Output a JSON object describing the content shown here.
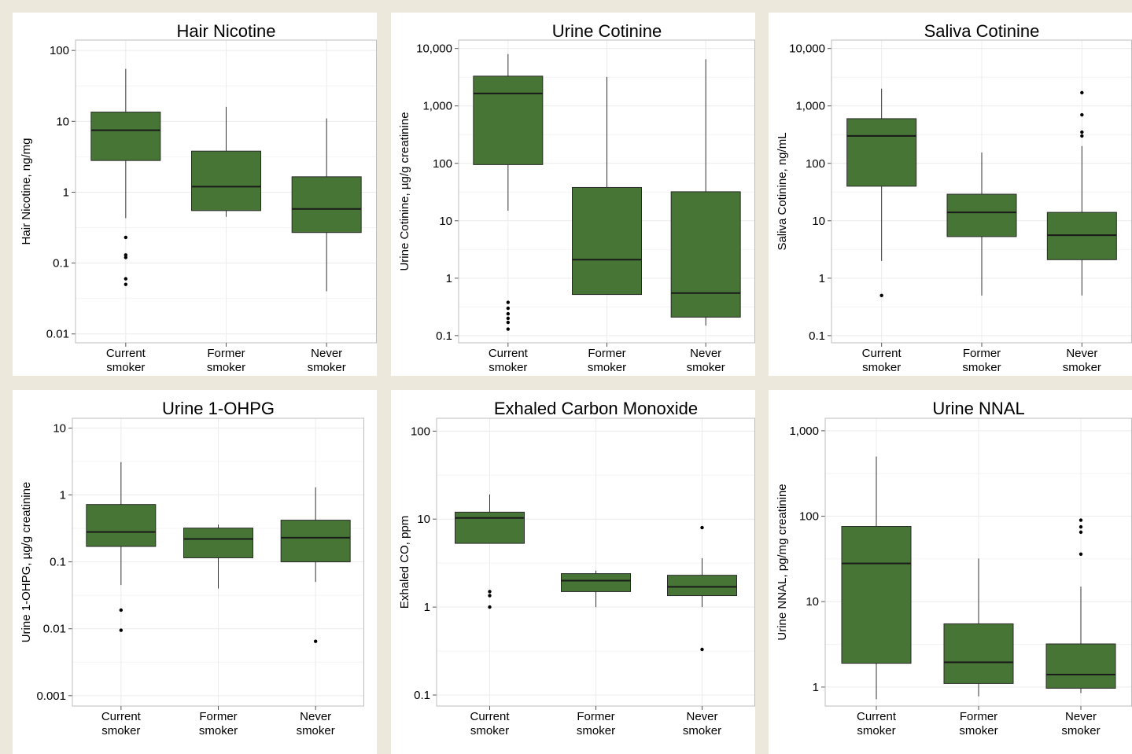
{
  "colors": {
    "box_fill": "#467535",
    "box_stroke": "#2a2a2a",
    "whisker": "#333333",
    "median": "#1a1a1a",
    "outlier": "#000000",
    "grid": "#ececec",
    "frame": "#bdbdbd",
    "background": "#ece9dc"
  },
  "chart_data": [
    {
      "type": "box",
      "title": "Hair Nicotine",
      "ylabel": "Hair Nicotine, ng/mg",
      "yscale": "log10",
      "ylim": [
        0.0075,
        140
      ],
      "yticks": [
        {
          "v": 0.01,
          "label": "0.01"
        },
        {
          "v": 0.1,
          "label": "0.1"
        },
        {
          "v": 1,
          "label": "1"
        },
        {
          "v": 10,
          "label": "10"
        },
        {
          "v": 100,
          "label": "100"
        }
      ],
      "categories": [
        [
          "Current",
          "smoker"
        ],
        [
          "Former",
          "smoker"
        ],
        [
          "Never",
          "smoker"
        ]
      ],
      "boxes": [
        {
          "low": 0.43,
          "q1": 2.8,
          "median": 7.5,
          "q3": 13.5,
          "high": 55,
          "outliers": [
            0.23,
            0.13,
            0.12,
            0.06,
            0.05
          ]
        },
        {
          "low": 0.45,
          "q1": 0.55,
          "median": 1.2,
          "q3": 3.8,
          "high": 16,
          "outliers": []
        },
        {
          "low": 0.04,
          "q1": 0.27,
          "median": 0.58,
          "q3": 1.65,
          "high": 11,
          "outliers": []
        }
      ]
    },
    {
      "type": "box",
      "title": "Urine Cotinine",
      "ylabel": "Urine Cotinine, µg/g creatinine",
      "yscale": "log10",
      "ylim": [
        0.075,
        14000
      ],
      "yticks": [
        {
          "v": 0.1,
          "label": "0.1"
        },
        {
          "v": 1,
          "label": "1"
        },
        {
          "v": 10,
          "label": "10"
        },
        {
          "v": 100,
          "label": "100"
        },
        {
          "v": 1000,
          "label": "1,000"
        },
        {
          "v": 10000,
          "label": "10,000"
        }
      ],
      "categories": [
        [
          "Current",
          "smoker"
        ],
        [
          "Former",
          "smoker"
        ],
        [
          "Never",
          "smoker"
        ]
      ],
      "boxes": [
        {
          "low": 15,
          "q1": 95,
          "median": 1650,
          "q3": 3300,
          "high": 8000,
          "outliers": [
            0.38,
            0.3,
            0.24,
            0.2,
            0.17,
            0.13
          ]
        },
        {
          "low": 0.52,
          "q1": 0.52,
          "median": 2.1,
          "q3": 38,
          "high": 3200,
          "outliers": []
        },
        {
          "low": 0.15,
          "q1": 0.21,
          "median": 0.55,
          "q3": 32,
          "high": 6500,
          "outliers": []
        }
      ]
    },
    {
      "type": "box",
      "title": "Saliva Cotinine",
      "ylabel": "Saliva Cotinine, ng/mL",
      "yscale": "log10",
      "ylim": [
        0.075,
        14000
      ],
      "yticks": [
        {
          "v": 0.1,
          "label": "0.1"
        },
        {
          "v": 1,
          "label": "1"
        },
        {
          "v": 10,
          "label": "10"
        },
        {
          "v": 100,
          "label": "100"
        },
        {
          "v": 1000,
          "label": "1,000"
        },
        {
          "v": 10000,
          "label": "10,000"
        }
      ],
      "categories": [
        [
          "Current",
          "smoker"
        ],
        [
          "Former",
          "smoker"
        ],
        [
          "Never",
          "smoker"
        ]
      ],
      "boxes": [
        {
          "low": 2,
          "q1": 40,
          "median": 300,
          "q3": 600,
          "high": 2000,
          "outliers": [
            0.5
          ]
        },
        {
          "low": 0.5,
          "q1": 5.3,
          "median": 14,
          "q3": 29,
          "high": 155,
          "outliers": []
        },
        {
          "low": 0.5,
          "q1": 2.1,
          "median": 5.6,
          "q3": 14,
          "high": 200,
          "outliers": [
            1700,
            700,
            350,
            300
          ]
        }
      ]
    },
    {
      "type": "box",
      "title": "Urine 1-OHPG",
      "ylabel": "Urine 1-OHPG, µg/g creatinine",
      "yscale": "log10",
      "ylim": [
        0.0007,
        14
      ],
      "yticks": [
        {
          "v": 0.001,
          "label": "0.001"
        },
        {
          "v": 0.01,
          "label": "0.01"
        },
        {
          "v": 0.1,
          "label": "0.1"
        },
        {
          "v": 1,
          "label": "1"
        },
        {
          "v": 10,
          "label": "10"
        }
      ],
      "categories": [
        [
          "Current",
          "smoker"
        ],
        [
          "Former",
          "smoker"
        ],
        [
          "Never",
          "smoker"
        ]
      ],
      "boxes": [
        {
          "low": 0.045,
          "q1": 0.17,
          "median": 0.28,
          "q3": 0.72,
          "high": 3.1,
          "outliers": [
            0.019,
            0.0095
          ]
        },
        {
          "low": 0.04,
          "q1": 0.115,
          "median": 0.22,
          "q3": 0.32,
          "high": 0.36,
          "outliers": []
        },
        {
          "low": 0.05,
          "q1": 0.1,
          "median": 0.23,
          "q3": 0.42,
          "high": 1.3,
          "outliers": [
            0.0065
          ]
        }
      ]
    },
    {
      "type": "box",
      "title": "Exhaled Carbon Monoxide",
      "ylabel": "Exhaled CO, ppm",
      "yscale": "log10",
      "ylim": [
        0.075,
        140
      ],
      "yticks": [
        {
          "v": 0.1,
          "label": "0.1"
        },
        {
          "v": 1,
          "label": "1"
        },
        {
          "v": 10,
          "label": "10"
        },
        {
          "v": 100,
          "label": "100"
        }
      ],
      "categories": [
        [
          "Current",
          "smoker"
        ],
        [
          "Former",
          "smoker"
        ],
        [
          "Never",
          "smoker"
        ]
      ],
      "boxes": [
        {
          "low": 5.3,
          "q1": 5.3,
          "median": 10.3,
          "q3": 12,
          "high": 19,
          "outliers": [
            1.5,
            1.35,
            1.0
          ]
        },
        {
          "low": 1.0,
          "q1": 1.5,
          "median": 2.0,
          "q3": 2.4,
          "high": 2.6,
          "outliers": []
        },
        {
          "low": 1.0,
          "q1": 1.35,
          "median": 1.7,
          "q3": 2.3,
          "high": 3.6,
          "outliers": [
            8.0,
            0.33
          ]
        }
      ]
    },
    {
      "type": "box",
      "title": "Urine NNAL",
      "ylabel": "Urine NNAL, pg/mg creatinine",
      "yscale": "log10",
      "ylim": [
        0.6,
        1400
      ],
      "yticks": [
        {
          "v": 1,
          "label": "1"
        },
        {
          "v": 10,
          "label": "10"
        },
        {
          "v": 100,
          "label": "100"
        },
        {
          "v": 1000,
          "label": "1,000"
        }
      ],
      "categories": [
        [
          "Current",
          "smoker"
        ],
        [
          "Former",
          "smoker"
        ],
        [
          "Never",
          "smoker"
        ]
      ],
      "boxes": [
        {
          "low": 0.72,
          "q1": 1.9,
          "median": 28,
          "q3": 76,
          "high": 500,
          "outliers": []
        },
        {
          "low": 0.78,
          "q1": 1.1,
          "median": 1.95,
          "q3": 5.5,
          "high": 32,
          "outliers": []
        },
        {
          "low": 0.85,
          "q1": 0.97,
          "median": 1.4,
          "q3": 3.2,
          "high": 15,
          "outliers": [
            90,
            75,
            65,
            36
          ]
        }
      ]
    }
  ]
}
